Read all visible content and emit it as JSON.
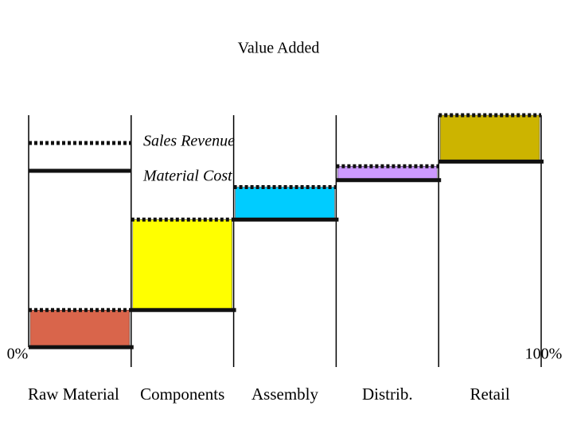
{
  "chart_data": {
    "type": "value-added",
    "title": "Value Added",
    "categories": [
      "Raw Material",
      "Components",
      "Assembly",
      "Distrib.",
      "Retail"
    ],
    "colors": [
      "#d9654b",
      "#ffff00",
      "#00ccff",
      "#cc99ff",
      "#ccb400"
    ],
    "series": [
      {
        "name": "Material Cost",
        "values": [
          0,
          16,
          55,
          72,
          80
        ]
      },
      {
        "name": "Sales Revenue",
        "values": [
          16,
          55,
          69,
          78,
          100
        ]
      }
    ],
    "ylim": [
      0,
      100
    ],
    "xlim": [
      0,
      100
    ],
    "xticks": [
      {
        "value": 0,
        "label": "0%"
      },
      {
        "value": 100,
        "label": "100%"
      }
    ]
  }
}
